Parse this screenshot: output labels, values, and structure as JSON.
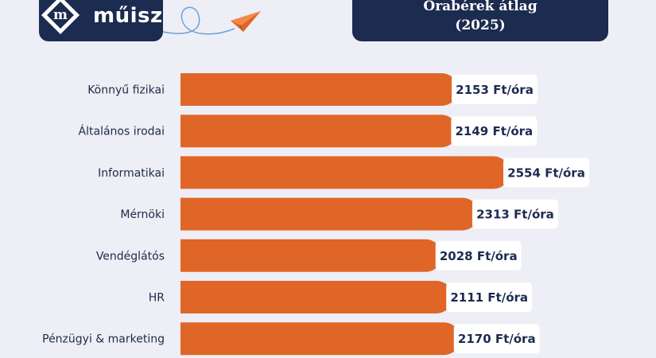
{
  "brand": {
    "name": "műisz",
    "logo_letter": "m"
  },
  "colors": {
    "navy": "#1c2b50",
    "bar": "#e06627",
    "background": "#eeeef6",
    "label_bg": "#ffffff"
  },
  "chart_data": {
    "type": "bar",
    "orientation": "horizontal",
    "title": "Órabérek átlag (2025)",
    "title_lines": [
      "Órabérek átlag",
      "(2025)"
    ],
    "categories": [
      "Könnyű fizikai",
      "Általános irodai",
      "Informatikai",
      "Mérnöki",
      "Vendéglátós",
      "HR",
      "Pénzügyi & marketing"
    ],
    "values": [
      2153,
      2149,
      2554,
      2313,
      2028,
      2111,
      2170
    ],
    "labels": [
      "2153 Ft/óra",
      "2149 Ft/óra",
      "2554 Ft/óra",
      "2313 Ft/óra",
      "2028 Ft/óra",
      "2111 Ft/óra",
      "2170 Ft/óra"
    ],
    "unit": "Ft/óra",
    "xlabel": "",
    "ylabel": ""
  }
}
